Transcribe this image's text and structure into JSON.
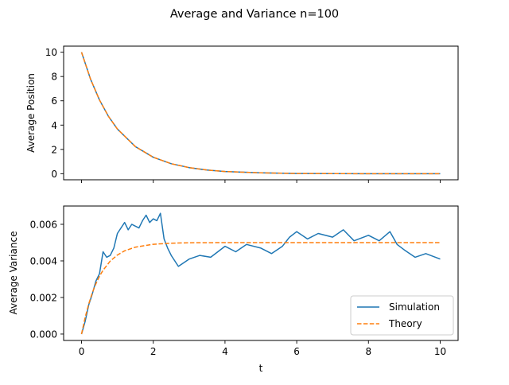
{
  "chart_data": {
    "title": "Average and Variance n=100",
    "colors": {
      "simulation": "#1f77b4",
      "theory": "#ff7f0e"
    },
    "subplots": [
      {
        "type": "line",
        "ylabel": "Average Position",
        "xlabel": "",
        "xlim": [
          -0.5,
          10.5
        ],
        "ylim": [
          -0.5,
          10.5
        ],
        "xticks": [
          0,
          2,
          4,
          6,
          8,
          10
        ],
        "show_xtick_labels": false,
        "yticks": [
          0,
          2,
          4,
          6,
          8,
          10
        ],
        "ytick_labels": [
          "0",
          "2",
          "4",
          "6",
          "8",
          "10"
        ],
        "series": [
          {
            "name": "Simulation",
            "style": "solid",
            "x": [
              0,
              0.25,
              0.5,
              0.75,
              1,
              1.5,
              2,
              2.5,
              3,
              3.5,
              4,
              5,
              6,
              7,
              8,
              9,
              10
            ],
            "y": [
              10,
              7.79,
              6.07,
              4.72,
              3.68,
              2.23,
              1.35,
              0.82,
              0.5,
              0.3,
              0.18,
              0.07,
              0.02,
              0.01,
              0.0,
              0.0,
              0.0
            ]
          },
          {
            "name": "Theory",
            "style": "dashed",
            "x": [
              0,
              0.25,
              0.5,
              0.75,
              1,
              1.5,
              2,
              2.5,
              3,
              3.5,
              4,
              5,
              6,
              7,
              8,
              9,
              10
            ],
            "y": [
              10,
              7.79,
              6.07,
              4.72,
              3.68,
              2.23,
              1.35,
              0.82,
              0.5,
              0.3,
              0.18,
              0.07,
              0.02,
              0.01,
              0.0,
              0.0,
              0.0
            ]
          }
        ]
      },
      {
        "type": "line",
        "ylabel": "Average Variance",
        "xlabel": "t",
        "xlim": [
          -0.5,
          10.5
        ],
        "ylim": [
          -0.00035,
          0.007
        ],
        "xticks": [
          0,
          2,
          4,
          6,
          8,
          10
        ],
        "xtick_labels": [
          "0",
          "2",
          "4",
          "6",
          "8",
          "10"
        ],
        "show_xtick_labels": true,
        "yticks": [
          0,
          0.002,
          0.004,
          0.006
        ],
        "ytick_labels": [
          "0.000",
          "0.002",
          "0.004",
          "0.006"
        ],
        "legend": {
          "position": "bottom-right",
          "entries": [
            "Simulation",
            "Theory"
          ]
        },
        "series": [
          {
            "name": "Simulation",
            "style": "solid",
            "x": [
              0,
              0.1,
              0.2,
              0.3,
              0.4,
              0.5,
              0.6,
              0.7,
              0.8,
              0.9,
              1.0,
              1.1,
              1.2,
              1.3,
              1.4,
              1.5,
              1.6,
              1.7,
              1.8,
              1.9,
              2.0,
              2.1,
              2.2,
              2.3,
              2.4,
              2.5,
              2.7,
              3.0,
              3.3,
              3.6,
              4.0,
              4.3,
              4.6,
              5.0,
              5.3,
              5.6,
              5.8,
              6.0,
              6.3,
              6.6,
              7.0,
              7.3,
              7.6,
              8.0,
              8.3,
              8.6,
              8.8,
              9.0,
              9.3,
              9.6,
              10.0
            ],
            "y": [
              0.0,
              0.0007,
              0.0016,
              0.0022,
              0.0029,
              0.0033,
              0.0045,
              0.0042,
              0.0043,
              0.0047,
              0.0055,
              0.0058,
              0.0061,
              0.0057,
              0.006,
              0.0059,
              0.0058,
              0.0062,
              0.0065,
              0.0061,
              0.0063,
              0.0062,
              0.0066,
              0.0052,
              0.0047,
              0.0043,
              0.0037,
              0.0041,
              0.0043,
              0.0042,
              0.0048,
              0.0045,
              0.0049,
              0.0047,
              0.0044,
              0.0048,
              0.0053,
              0.0056,
              0.0052,
              0.0055,
              0.0053,
              0.0057,
              0.0051,
              0.0054,
              0.0051,
              0.0056,
              0.0049,
              0.0046,
              0.0042,
              0.0044,
              0.0041
            ]
          },
          {
            "name": "Theory",
            "style": "dashed",
            "x": [
              0,
              0.1,
              0.2,
              0.3,
              0.4,
              0.5,
              0.6,
              0.8,
              1.0,
              1.2,
              1.5,
              2.0,
              2.5,
              3.0,
              4.0,
              5.0,
              6.0,
              7.0,
              8.0,
              9.0,
              10.0
            ],
            "y": [
              0.0,
              0.00091,
              0.00165,
              0.00226,
              0.00275,
              0.00316,
              0.00349,
              0.00399,
              0.00432,
              0.00455,
              0.00475,
              0.00491,
              0.00497,
              0.00499,
              0.005,
              0.005,
              0.005,
              0.005,
              0.005,
              0.005,
              0.005
            ]
          }
        ]
      }
    ]
  }
}
